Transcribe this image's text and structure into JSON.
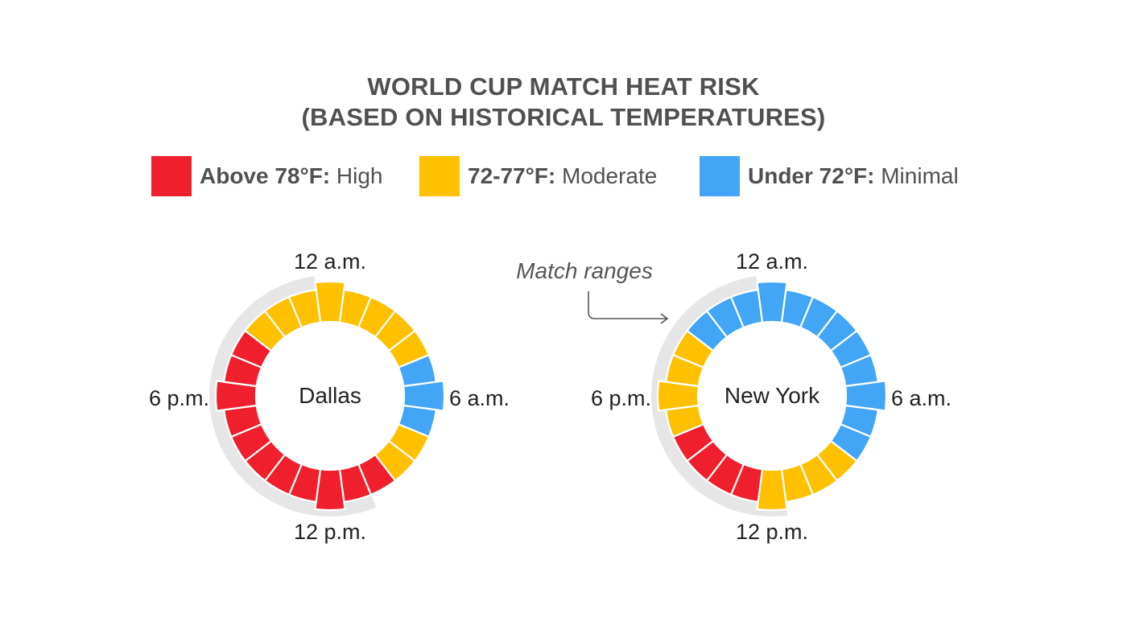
{
  "title_line1": "WORLD CUP MATCH HEAT RISK",
  "title_line2": "(BASED ON HISTORICAL TEMPERATURES)",
  "legend": [
    {
      "key": "high",
      "bold": "Above 78°F:",
      "text": " High",
      "color": "#EF1F2D"
    },
    {
      "key": "moderate",
      "bold": "72-77°F:",
      "text": " Moderate",
      "color": "#FFC000"
    },
    {
      "key": "minimal",
      "bold": "Under 72°F:",
      "text": " Minimal",
      "color": "#42A5F5"
    }
  ],
  "annotation": "Match ranges",
  "hour_labels": {
    "top": "12 a.m.",
    "right": "6 a.m.",
    "bottom": "12 p.m.",
    "left": "6 p.m."
  },
  "colors": {
    "high": "#EF1F2D",
    "moderate": "#FFC000",
    "minimal": "#42A5F5",
    "match_range": "#E6E6E6",
    "text": "#222222",
    "annotation": "#555555"
  },
  "chart_data": [
    {
      "type": "radial-bar",
      "city": "Dallas",
      "hours": [
        "12 a.m.",
        "1 a.m.",
        "2 a.m.",
        "3 a.m.",
        "4 a.m.",
        "5 a.m.",
        "6 a.m.",
        "7 a.m.",
        "8 a.m.",
        "9 a.m.",
        "10 a.m.",
        "11 a.m.",
        "12 p.m.",
        "1 p.m.",
        "2 p.m.",
        "3 p.m.",
        "4 p.m.",
        "5 p.m.",
        "6 p.m.",
        "7 p.m.",
        "8 p.m.",
        "9 p.m.",
        "10 p.m.",
        "11 p.m."
      ],
      "heat_risk": [
        "moderate",
        "moderate",
        "moderate",
        "moderate",
        "moderate",
        "minimal",
        "minimal",
        "minimal",
        "moderate",
        "moderate",
        "high",
        "high",
        "high",
        "high",
        "high",
        "high",
        "high",
        "high",
        "high",
        "high",
        "high",
        "moderate",
        "moderate",
        "moderate"
      ],
      "match_range": [
        "11 a.m.",
        "12 a.m."
      ]
    },
    {
      "type": "radial-bar",
      "city": "New York",
      "hours": [
        "12 a.m.",
        "1 a.m.",
        "2 a.m.",
        "3 a.m.",
        "4 a.m.",
        "5 a.m.",
        "6 a.m.",
        "7 a.m.",
        "8 a.m.",
        "9 a.m.",
        "10 a.m.",
        "11 a.m.",
        "12 p.m.",
        "1 p.m.",
        "2 p.m.",
        "3 p.m.",
        "4 p.m.",
        "5 p.m.",
        "6 p.m.",
        "7 p.m.",
        "8 p.m.",
        "9 p.m.",
        "10 p.m.",
        "11 p.m."
      ],
      "heat_risk": [
        "minimal",
        "minimal",
        "minimal",
        "minimal",
        "minimal",
        "minimal",
        "minimal",
        "minimal",
        "minimal",
        "moderate",
        "moderate",
        "moderate",
        "moderate",
        "high",
        "high",
        "high",
        "high",
        "moderate",
        "moderate",
        "moderate",
        "moderate",
        "minimal",
        "minimal",
        "minimal"
      ],
      "match_range": [
        "12 p.m.",
        "12 a.m."
      ]
    }
  ]
}
